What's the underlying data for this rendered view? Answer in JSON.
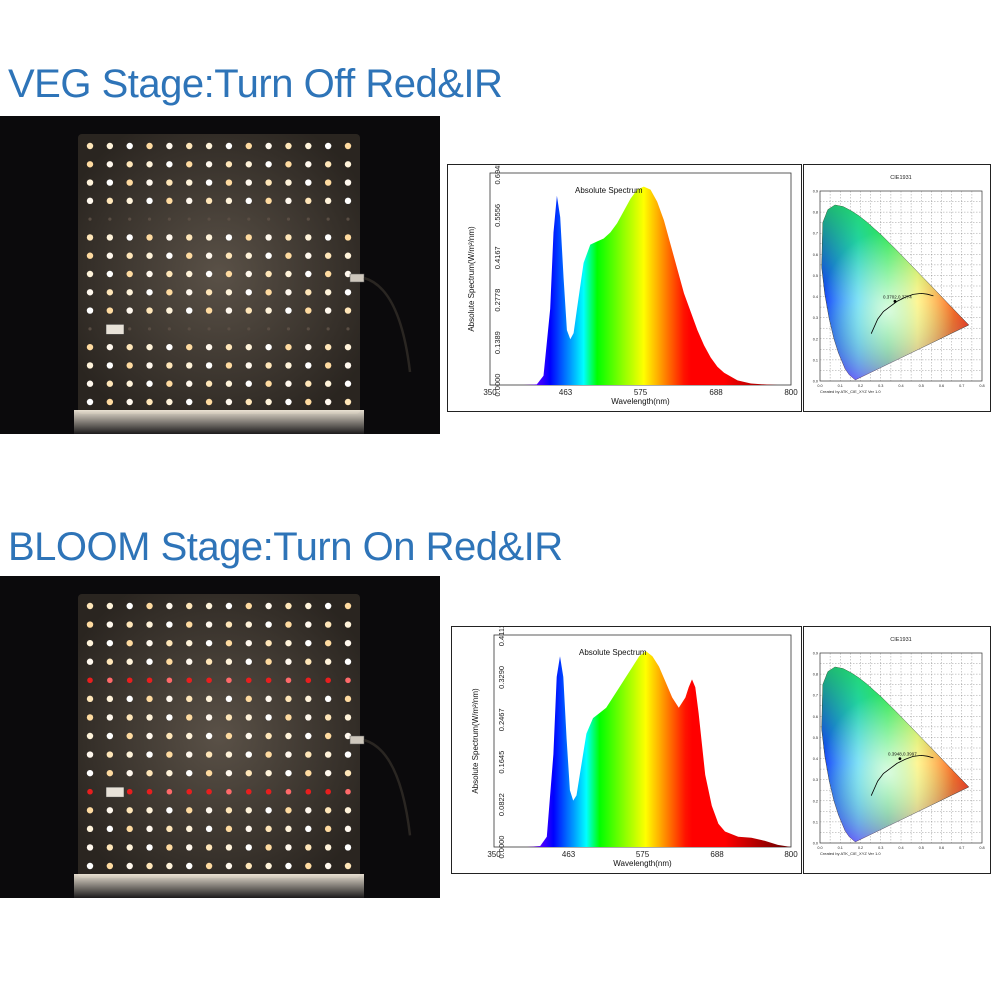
{
  "sections": [
    {
      "title": "VEG Stage:Turn Off Red&IR",
      "spectrum": {
        "type": "area",
        "title": "Absolute Spectrum",
        "xlabel": "Wavelength(nm)",
        "ylabel": "Absolute Spectrum(W/m²/nm)",
        "x_ticks": [
          "350",
          "463",
          "575",
          "688",
          "800"
        ],
        "y_ticks": [
          "0.0000",
          "0.1389",
          "0.2778",
          "0.4167",
          "0.5556",
          "0.6945"
        ],
        "xlim": [
          350,
          800
        ],
        "ylim": [
          0,
          0.6945
        ],
        "x": [
          350,
          380,
          400,
          420,
          430,
          440,
          445,
          450,
          455,
          460,
          465,
          470,
          475,
          480,
          490,
          500,
          510,
          520,
          530,
          540,
          550,
          560,
          570,
          580,
          590,
          600,
          610,
          620,
          630,
          640,
          650,
          660,
          670,
          680,
          690,
          700,
          720,
          740,
          760,
          780,
          800
        ],
        "y": [
          0,
          0,
          0,
          0.002,
          0.03,
          0.25,
          0.5,
          0.62,
          0.55,
          0.35,
          0.18,
          0.15,
          0.17,
          0.25,
          0.4,
          0.46,
          0.47,
          0.48,
          0.5,
          0.53,
          0.57,
          0.61,
          0.64,
          0.65,
          0.64,
          0.6,
          0.54,
          0.46,
          0.38,
          0.3,
          0.24,
          0.18,
          0.13,
          0.09,
          0.06,
          0.04,
          0.015,
          0.005,
          0.002,
          0,
          0
        ]
      },
      "cie": {
        "title": "CIE1931",
        "point_label": "0.3702,0.3774",
        "footer": "Created by ATK_CIE_XYZ Ver 1.0",
        "x_ticks": [
          "0.0",
          "0.1",
          "0.2",
          "0.3",
          "0.4",
          "0.5",
          "0.6",
          "0.7",
          "0.8"
        ],
        "y_ticks": [
          "0.0",
          "0.1",
          "0.2",
          "0.3",
          "0.4",
          "0.5",
          "0.6",
          "0.7",
          "0.8",
          "0.9"
        ],
        "point": [
          0.3702,
          0.3774
        ]
      },
      "lamp": {
        "red_rows": false
      }
    },
    {
      "title": "BLOOM Stage:Turn On Red&IR",
      "spectrum": {
        "type": "area",
        "title": "Absolute Spectrum",
        "xlabel": "Wavelength(nm)",
        "ylabel": "Absolute Spectrum(W/m²/nm)",
        "x_ticks": [
          "350",
          "463",
          "575",
          "688",
          "800"
        ],
        "y_ticks": [
          "0.0000",
          "0.0822",
          "0.1645",
          "0.2467",
          "0.3290",
          "0.4112"
        ],
        "xlim": [
          350,
          800
        ],
        "ylim": [
          0,
          0.4112
        ],
        "x": [
          350,
          380,
          400,
          420,
          430,
          440,
          445,
          450,
          455,
          460,
          465,
          470,
          475,
          480,
          490,
          500,
          510,
          520,
          530,
          540,
          550,
          560,
          570,
          580,
          590,
          600,
          610,
          620,
          630,
          640,
          645,
          650,
          655,
          660,
          665,
          670,
          680,
          690,
          700,
          720,
          740,
          760,
          780,
          800
        ],
        "y": [
          0,
          0,
          0,
          0.002,
          0.02,
          0.18,
          0.33,
          0.37,
          0.33,
          0.21,
          0.11,
          0.09,
          0.1,
          0.14,
          0.22,
          0.25,
          0.26,
          0.27,
          0.29,
          0.31,
          0.33,
          0.35,
          0.37,
          0.38,
          0.37,
          0.35,
          0.32,
          0.29,
          0.27,
          0.29,
          0.31,
          0.325,
          0.31,
          0.26,
          0.2,
          0.14,
          0.08,
          0.045,
          0.03,
          0.02,
          0.018,
          0.012,
          0.004,
          0
        ]
      },
      "cie": {
        "title": "CIE1931",
        "point_label": "0.3948,0.3997",
        "footer": "Created by ATK_CIE_XYZ Ver 1.0",
        "x_ticks": [
          "0.0",
          "0.1",
          "0.2",
          "0.3",
          "0.4",
          "0.5",
          "0.6",
          "0.7",
          "0.8"
        ],
        "y_ticks": [
          "0.0",
          "0.1",
          "0.2",
          "0.3",
          "0.4",
          "0.5",
          "0.6",
          "0.7",
          "0.8",
          "0.9"
        ],
        "point": [
          0.3948,
          0.3997
        ]
      },
      "lamp": {
        "red_rows": true
      }
    }
  ]
}
